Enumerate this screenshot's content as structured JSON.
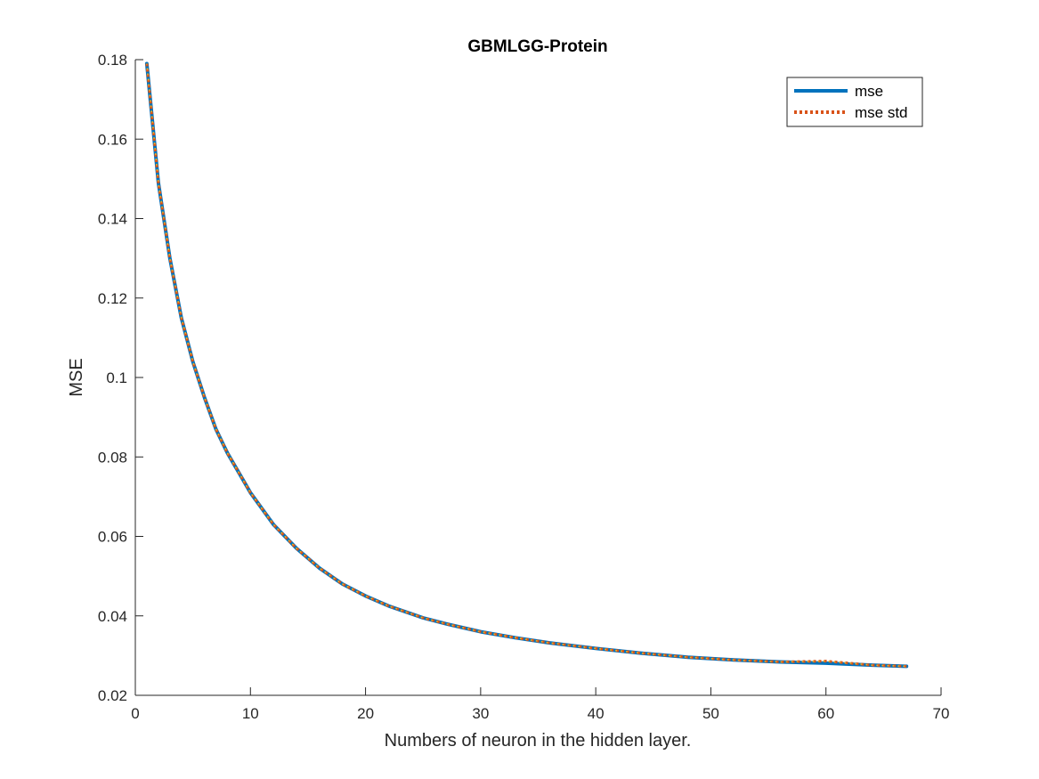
{
  "chart_data": {
    "type": "line",
    "title": "GBMLGG-Protein",
    "xlabel": "Numbers of neuron in the hidden layer.",
    "ylabel": "MSE",
    "xlim": [
      0,
      70
    ],
    "ylim": [
      0.02,
      0.18
    ],
    "xticks": [
      0,
      10,
      20,
      30,
      40,
      50,
      60,
      70
    ],
    "yticks": [
      0.02,
      0.04,
      0.06,
      0.08,
      0.1,
      0.12,
      0.14,
      0.16,
      0.18
    ],
    "xtick_labels": [
      "0",
      "10",
      "20",
      "30",
      "40",
      "50",
      "60",
      "70"
    ],
    "ytick_labels": [
      "0.02",
      "0.04",
      "0.06",
      "0.08",
      "0.1",
      "0.12",
      "0.14",
      "0.16",
      "0.18"
    ],
    "grid": false,
    "legend_position": "top-right",
    "x": [
      1,
      2,
      3,
      4,
      5,
      6,
      7,
      8,
      9,
      10,
      12,
      14,
      16,
      18,
      20,
      22,
      25,
      27,
      30,
      33,
      36,
      40,
      44,
      48,
      52,
      56,
      60,
      64,
      67
    ],
    "series": [
      {
        "name": "mse",
        "color": "#0072BD",
        "style": "solid",
        "values": [
          0.179,
          0.149,
          0.13,
          0.115,
          0.104,
          0.095,
          0.087,
          0.081,
          0.076,
          0.071,
          0.063,
          0.057,
          0.052,
          0.048,
          0.045,
          0.0425,
          0.0395,
          0.038,
          0.036,
          0.0345,
          0.0332,
          0.0318,
          0.0306,
          0.0296,
          0.0289,
          0.0284,
          0.0281,
          0.0276,
          0.0273
        ]
      },
      {
        "name": "mse std",
        "color": "#D95319",
        "style": "dotted",
        "values": [
          0.179,
          0.149,
          0.13,
          0.115,
          0.104,
          0.095,
          0.087,
          0.081,
          0.076,
          0.071,
          0.063,
          0.057,
          0.052,
          0.048,
          0.045,
          0.0425,
          0.0395,
          0.038,
          0.036,
          0.0345,
          0.0332,
          0.0318,
          0.0306,
          0.0296,
          0.0289,
          0.0284,
          0.0286,
          0.0276,
          0.0273
        ]
      }
    ],
    "overlay_color": "#EDB120"
  }
}
